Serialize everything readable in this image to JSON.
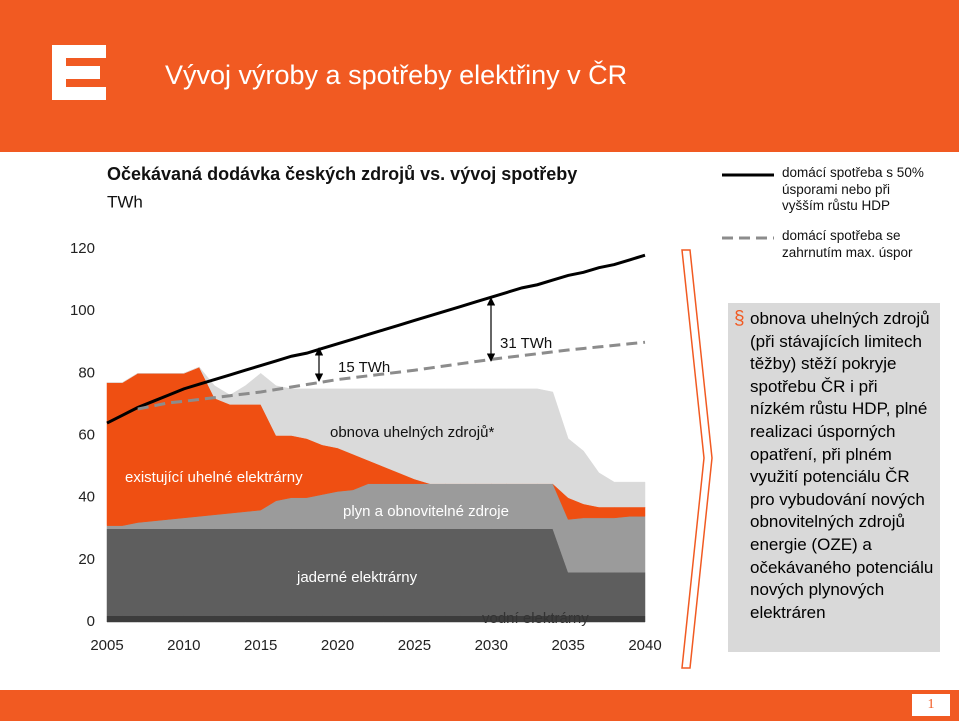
{
  "header": {
    "title": "Vývoj výroby a spotřeby elektřiny v ČR"
  },
  "chart_data": {
    "type": "stacked-area-line",
    "title": "Očekávaná dodávka českých zdrojů vs. vývoj spotřeby",
    "ylabel": "TWh",
    "x": [
      2005,
      2006,
      2007,
      2008,
      2009,
      2010,
      2011,
      2012,
      2013,
      2014,
      2015,
      2016,
      2017,
      2018,
      2019,
      2020,
      2021,
      2022,
      2023,
      2024,
      2025,
      2026,
      2027,
      2028,
      2029,
      2030,
      2031,
      2032,
      2033,
      2034,
      2035,
      2036,
      2037,
      2038,
      2039,
      2040
    ],
    "xlim": [
      2005,
      2040
    ],
    "xticks": [
      2005,
      2010,
      2015,
      2020,
      2025,
      2030,
      2035,
      2040
    ],
    "ylim": [
      0,
      120
    ],
    "yticks": [
      0,
      20,
      40,
      60,
      80,
      100,
      120
    ],
    "grid": false,
    "legend": "right",
    "series": [
      {
        "name": "vodní elektrárny",
        "type": "area",
        "color": "#3c3c3c",
        "values": [
          2,
          2,
          2,
          2,
          2,
          2,
          2,
          2,
          2,
          2,
          2,
          2,
          2,
          2,
          2,
          2,
          2,
          2,
          2,
          2,
          2,
          2,
          2,
          2,
          2,
          2,
          2,
          2,
          2,
          2,
          2,
          2,
          2,
          2,
          2,
          2
        ]
      },
      {
        "name": "jaderné elektrárny",
        "type": "area",
        "color": "#5e5e5e",
        "values": [
          28,
          28,
          28,
          28,
          28,
          28,
          28,
          28,
          28,
          28,
          28,
          28,
          28,
          28,
          28,
          28,
          28,
          28,
          28,
          28,
          28,
          28,
          28,
          28,
          28,
          28,
          28,
          28,
          28,
          28,
          14,
          14,
          14,
          14,
          14,
          14
        ]
      },
      {
        "name": "plyn a obnovitelné zdroje",
        "type": "area",
        "color": "#9b9b9b",
        "values": [
          1,
          1,
          2,
          2.5,
          3,
          3.5,
          4,
          4.5,
          5,
          5.5,
          6,
          9,
          10,
          10,
          11,
          12,
          12.5,
          14.5,
          14.5,
          14.5,
          14.5,
          14.5,
          14.5,
          14.5,
          14.5,
          14.5,
          14.5,
          14.5,
          14.5,
          14.5,
          17,
          17.5,
          17.5,
          17.5,
          18,
          18
        ]
      },
      {
        "name": "existující uhelné elektrárny",
        "type": "area",
        "color": "#ef4f12",
        "values": [
          46,
          46,
          48,
          47.5,
          47,
          46.5,
          48,
          37.5,
          35,
          34.5,
          34,
          21,
          20,
          19,
          16,
          14,
          11.5,
          7.5,
          5.5,
          3.5,
          1.5,
          0,
          0,
          0,
          0,
          0,
          0,
          0,
          0,
          0,
          7,
          4.5,
          3.5,
          3.5,
          3,
          3
        ]
      },
      {
        "name": "obnova uhelných zdrojů*",
        "type": "area",
        "color": "#dadada",
        "values": [
          0,
          0,
          0,
          0,
          0,
          0,
          0,
          4,
          3,
          6,
          10,
          16,
          15,
          16,
          18,
          19,
          21,
          23,
          25,
          27,
          29,
          30.5,
          30.5,
          30.5,
          30.5,
          30.5,
          30.5,
          30.5,
          30.5,
          29.5,
          19,
          17,
          11,
          8,
          8,
          8
        ]
      },
      {
        "name": "domácí spotřeba s 50% úsporami nebo při vyšším růstu HDP",
        "type": "line",
        "color": "#000000",
        "dashed": false,
        "values": [
          64,
          66.5,
          69,
          71,
          73,
          75,
          76.5,
          78,
          79.5,
          81,
          82.5,
          84,
          85.5,
          86.5,
          88,
          89.5,
          91,
          92.5,
          94,
          95.5,
          97,
          98.5,
          100,
          101.5,
          103,
          104.5,
          106,
          107.5,
          108.5,
          110,
          111.5,
          112.5,
          114,
          115,
          116.5,
          118
        ]
      },
      {
        "name": "domácí spotřeba se zahrnutím max. úspor",
        "type": "line",
        "color": "#8c8c8c",
        "dashed": true,
        "values": [
          null,
          null,
          68.5,
          69.5,
          70.5,
          71,
          71.6,
          72.2,
          72.8,
          73.4,
          74,
          74.8,
          75.6,
          76.4,
          77.2,
          78,
          78.6,
          79.2,
          79.8,
          80.4,
          81,
          81.7,
          82.4,
          83.1,
          83.8,
          84.5,
          85.1,
          85.7,
          86.3,
          86.9,
          87.5,
          88,
          88.5,
          89,
          89.5,
          90
        ]
      }
    ],
    "annotations": [
      "15 TWh",
      "31 TWh"
    ]
  },
  "note": {
    "bullet": "§",
    "text": "obnova uhelných zdrojů (při stávajících limitech těžby) stěží pokryje spotřebu ČR i při nízkém růstu HDP, plné realizaci úsporných opatření, při plném využití potenciálu ČR pro vybudování nových obnovitelných zdrojů energie (OZE) a očekávaného potenciálu nových plynových elektráren"
  },
  "footer": {
    "page": "1"
  }
}
